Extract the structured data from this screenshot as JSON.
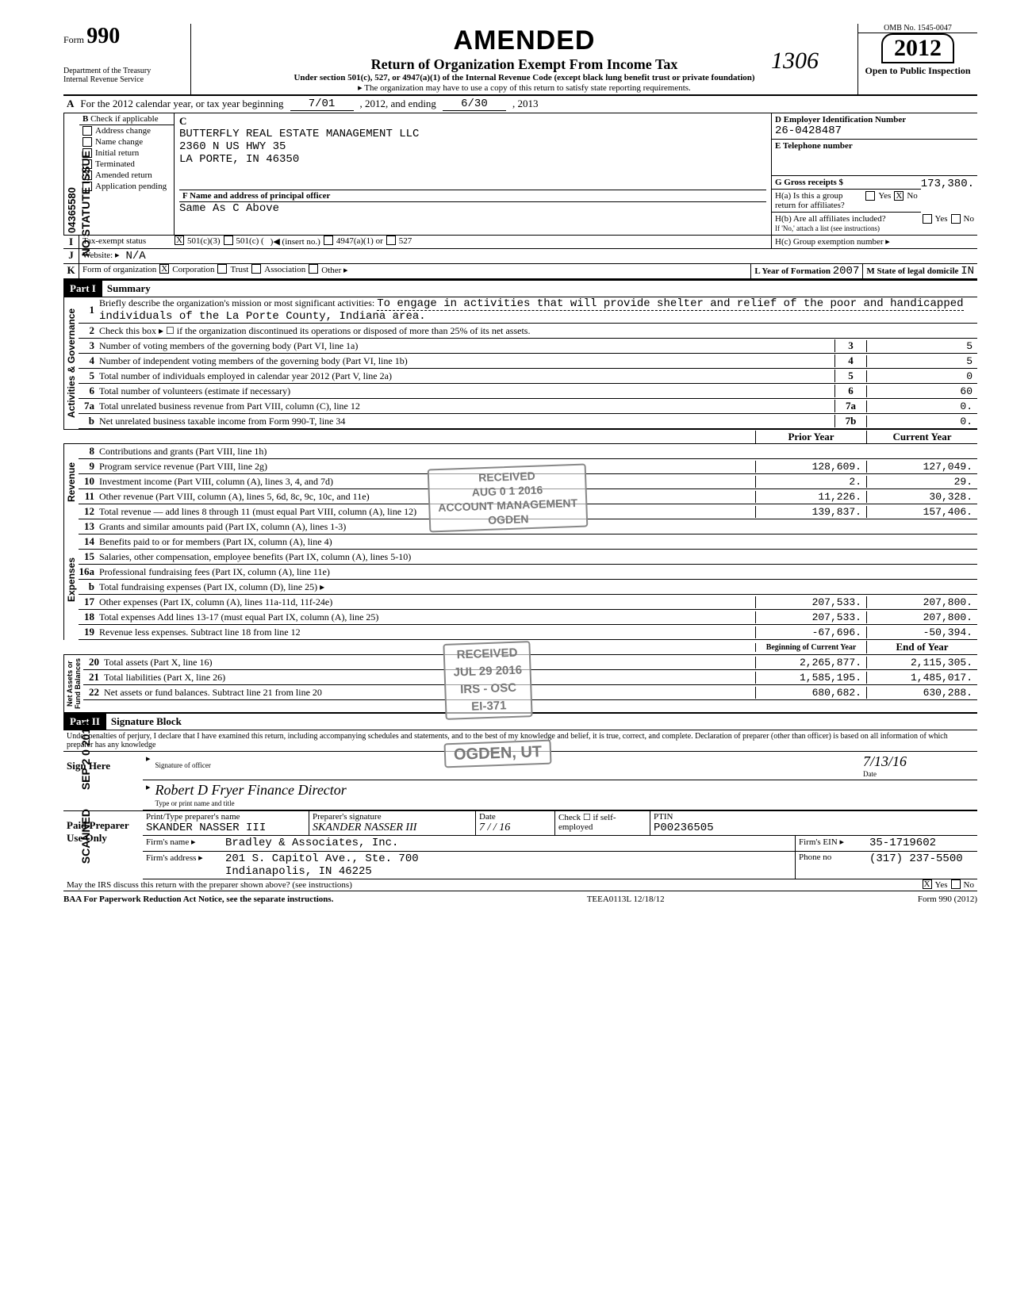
{
  "vertical_labels": {
    "l1": "NO STATUTE ISSUE",
    "l2": "SEP 2 0 2016",
    "l3": "SCANNED"
  },
  "hand_number": "1306",
  "header": {
    "form_word": "Form",
    "form_no": "990",
    "dept": "Department of the Treasury\nInternal Revenue Service",
    "amended": "AMENDED",
    "title": "Return of Organization Exempt From Income Tax",
    "sub1": "Under section 501(c), 527, or 4947(a)(1) of the Internal Revenue Code (except black lung benefit trust or private foundation)",
    "sub2": "▸ The organization may have to use a copy of this return to satisfy state reporting requirements.",
    "omb": "OMB No. 1545-0047",
    "year": "2012",
    "open": "Open to Public Inspection"
  },
  "lineA": {
    "text": "For the 2012 calendar year, or tax year beginning",
    "begin": "7/01",
    "mid": ", 2012, and ending",
    "end": "6/30",
    "tail": ", 2013"
  },
  "dln": "04365580",
  "checkB": {
    "header": "Check if applicable",
    "c": "C",
    "items": [
      "Address change",
      "Name change",
      "Initial return",
      "Terminated",
      "Amended return",
      "Application pending"
    ],
    "checked_idx": 4
  },
  "org": {
    "name": "BUTTERFLY REAL ESTATE MANAGEMENT LLC",
    "addr1": "2360 N US HWY 35",
    "addr2": "LA PORTE, IN 46350"
  },
  "secF": {
    "label": "F  Name and address of principal officer",
    "val": "Same As C Above"
  },
  "secD": {
    "label": "D  Employer Identification Number",
    "val": "26-0428487"
  },
  "secE": {
    "label": "E  Telephone number",
    "val": ""
  },
  "secG": {
    "label": "G  Gross receipts $",
    "val": "173,380."
  },
  "secH": {
    "a": "H(a) Is this a group return for affiliates?",
    "b": "H(b) Are all affiliates included?",
    "bnote": "If 'No,' attach a list (see instructions)",
    "c": "H(c) Group exemption number ▸",
    "yes": "Yes",
    "no": "No",
    "a_no_checked": "X"
  },
  "rowI": {
    "lbl": "I",
    "txt": "Tax-exempt status",
    "c3mark": "X",
    "c3": "501(c)(3)",
    "c": "501(c) (",
    "ins": ")◀   (insert no.)",
    "a1": "4947(a)(1) or",
    "s527": "527"
  },
  "rowJ": {
    "lbl": "J",
    "txt": "Website: ▸",
    "val": "N/A"
  },
  "rowK": {
    "lbl": "K",
    "txt": "Form of organization",
    "corp_mark": "X",
    "corp": "Corporation",
    "trust": "Trust",
    "assoc": "Association",
    "other": "Other ▸",
    "yof_lbl": "L Year of Formation",
    "yof": "2007",
    "dom_lbl": "M State of legal domicile",
    "dom": "IN"
  },
  "partI": {
    "hdr": "Part I",
    "title": "Summary"
  },
  "mission": {
    "lead": "Briefly describe the organization's mission or most significant activities:",
    "text": "To engage in activities that will provide shelter and relief of the poor and handicapped individuals of the La Porte County, Indiana area."
  },
  "gov": {
    "l2": "Check this box ▸ ☐ if the organization discontinued its operations or disposed of more than 25% of its net assets.",
    "rows": [
      {
        "n": "3",
        "t": "Number of voting members of the governing body (Part VI, line 1a)",
        "b": "3",
        "v": "5"
      },
      {
        "n": "4",
        "t": "Number of independent voting members of the governing body (Part VI, line 1b)",
        "b": "4",
        "v": "5"
      },
      {
        "n": "5",
        "t": "Total number of individuals employed in calendar year 2012 (Part V, line 2a)",
        "b": "5",
        "v": "0"
      },
      {
        "n": "6",
        "t": "Total number of volunteers (estimate if necessary)",
        "b": "6",
        "v": "60"
      },
      {
        "n": "7a",
        "t": "Total unrelated business revenue from Part VIII, column (C), line 12",
        "b": "7a",
        "v": "0."
      },
      {
        "n": "b",
        "t": "Net unrelated business taxable income from Form 990-T, line 34",
        "b": "7b",
        "v": "0."
      }
    ]
  },
  "prior_hdr": "Prior Year",
  "curr_hdr": "Current Year",
  "revenue": [
    {
      "n": "8",
      "t": "Contributions and grants (Part VIII, line 1h)",
      "p": "",
      "c": ""
    },
    {
      "n": "9",
      "t": "Program service revenue (Part VIII, line 2g)",
      "p": "128,609.",
      "c": "127,049."
    },
    {
      "n": "10",
      "t": "Investment income (Part VIII, column (A), lines 3, 4, and 7d)",
      "p": "2.",
      "c": "29."
    },
    {
      "n": "11",
      "t": "Other revenue (Part VIII, column (A), lines 5, 6d, 8c, 9c, 10c, and 11e)",
      "p": "11,226.",
      "c": "30,328."
    },
    {
      "n": "12",
      "t": "Total revenue — add lines 8 through 11 (must equal Part VIII, column (A), line 12)",
      "p": "139,837.",
      "c": "157,406."
    }
  ],
  "expenses": [
    {
      "n": "13",
      "t": "Grants and similar amounts paid (Part IX, column (A), lines 1-3)",
      "p": "",
      "c": ""
    },
    {
      "n": "14",
      "t": "Benefits paid to or for members (Part IX, column (A), line 4)",
      "p": "",
      "c": ""
    },
    {
      "n": "15",
      "t": "Salaries, other compensation, employee benefits (Part IX, column (A), lines 5-10)",
      "p": "",
      "c": ""
    },
    {
      "n": "16a",
      "t": "Professional fundraising fees (Part IX, column (A), line 11e)",
      "p": "",
      "c": ""
    },
    {
      "n": "b",
      "t": "Total fundraising expenses (Part IX, column (D), line 25) ▸",
      "single": true
    },
    {
      "n": "17",
      "t": "Other expenses (Part IX, column (A), lines 11a-11d, 11f-24e)",
      "p": "207,533.",
      "c": "207,800."
    },
    {
      "n": "18",
      "t": "Total expenses  Add lines 13-17 (must equal Part IX, column (A), line 25)",
      "p": "207,533.",
      "c": "207,800."
    },
    {
      "n": "19",
      "t": "Revenue less expenses. Subtract line 18 from line 12",
      "p": "-67,696.",
      "c": "-50,394."
    }
  ],
  "boy_hdr": "Beginning of Current Year",
  "eoy_hdr": "End of Year",
  "netassets": [
    {
      "n": "20",
      "t": "Total assets (Part X, line 16)",
      "p": "2,265,877.",
      "c": "2,115,305."
    },
    {
      "n": "21",
      "t": "Total liabilities (Part X, line 26)",
      "p": "1,585,195.",
      "c": "1,485,017."
    },
    {
      "n": "22",
      "t": "Net assets or fund balances. Subtract line 21 from line 20",
      "p": "680,682.",
      "c": "630,288."
    }
  ],
  "side": {
    "gov": "Activities & Governance",
    "rev": "Revenue",
    "exp": "Expenses",
    "na": "Net Assets or\nFund Balances"
  },
  "partII": {
    "hdr": "Part II",
    "title": "Signature Block"
  },
  "perjury": "Under penalties of perjury, I declare that I have examined this return, including accompanying schedules and statements, and to the best of my knowledge and belief, it is true, correct, and complete. Declaration of preparer (other than officer) is based on all information of which preparer has any knowledge",
  "sign": {
    "here": "Sign Here",
    "sig_lbl": "Signature of officer",
    "date_lbl": "Date",
    "date": "7/13/16",
    "name": "Robert D Fryer  Finance Director",
    "name_lbl": "Type or print name and title"
  },
  "paid": {
    "hdr": "Paid Preparer Use Only",
    "pp_lbl": "Print/Type preparer's name",
    "pp": "SKANDER NASSER III",
    "ps_lbl": "Preparer's signature",
    "ps": "SKANDER NASSER III",
    "pd_lbl": "Date",
    "pd": "7 /  / 16",
    "chk": "Check ☐ if self-employed",
    "ptin_lbl": "PTIN",
    "ptin": "P00236505",
    "firm_lbl": "Firm's name ▸",
    "firm": "Bradley & Associates, Inc.",
    "addr_lbl": "Firm's address ▸",
    "addr1": "201 S. Capitol Ave., Ste. 700",
    "addr2": "Indianapolis, IN 46225",
    "ein_lbl": "Firm's EIN ▸",
    "ein": "35-1719602",
    "ph_lbl": "Phone no",
    "ph": "(317) 237-5500"
  },
  "discuss": {
    "q": "May the IRS discuss this return with the preparer shown above? (see instructions)",
    "yes": "Yes",
    "no": "No",
    "mark": "X"
  },
  "footer": {
    "left": "BAA  For Paperwork Reduction Act Notice, see the separate instructions.",
    "mid": "TEEA0113L  12/18/12",
    "right": "Form 990 (2012)"
  },
  "stamps": {
    "recv": "RECEIVED\nAUG 0 1 2016\nACCOUNT MANAGEMENT\nOGDEN",
    "recv2": "RECEIVED\nJUL 29 2016\nIRS - OSC\nEI-371",
    "ogden": "OGDEN, UT"
  }
}
